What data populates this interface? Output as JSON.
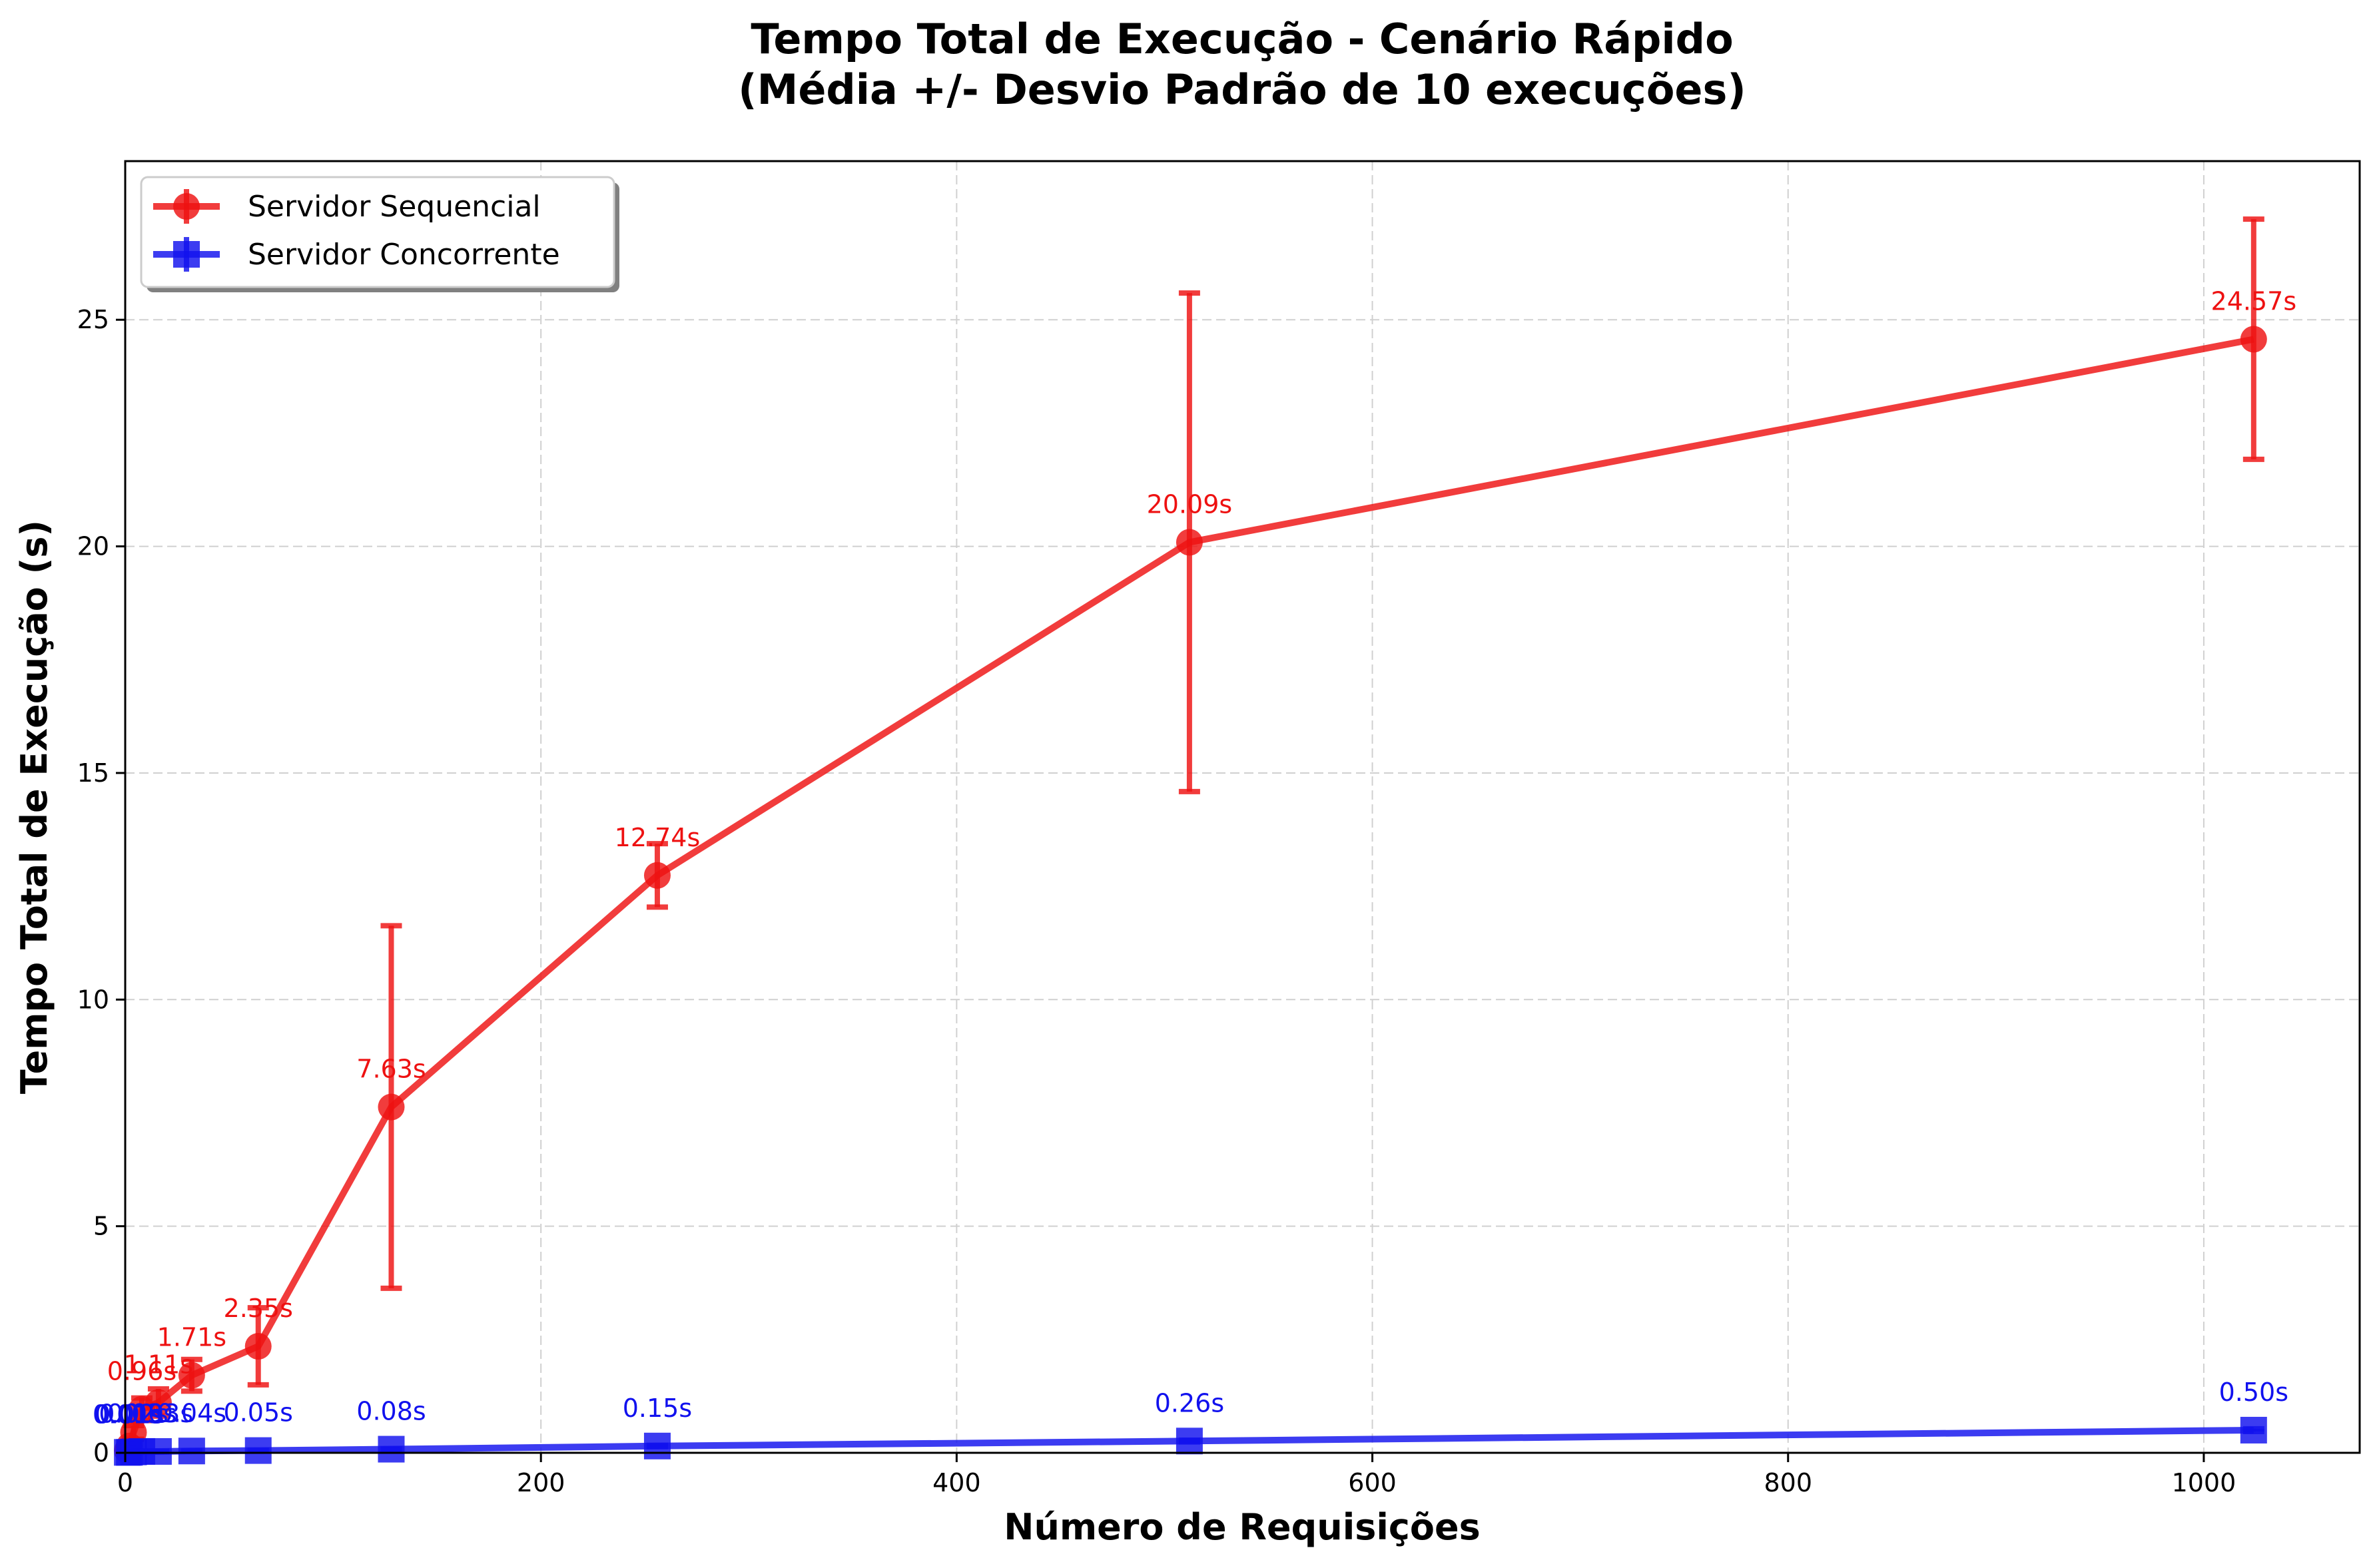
{
  "chart_data": {
    "type": "line",
    "title": "Tempo Total de Execução - Cenário Rápido",
    "subtitle": "(Média +/- Desvio Padrão de 10 execuções)",
    "xlabel": "Número de Requisições",
    "ylabel": "Tempo Total de Execução (s)",
    "xlim": [
      0,
      1075
    ],
    "ylim": [
      0,
      28.5
    ],
    "xticks": [
      0,
      200,
      400,
      600,
      800,
      1000
    ],
    "yticks": [
      0,
      5,
      10,
      15,
      20,
      25
    ],
    "grid": true,
    "legend_position": "top-left",
    "series": [
      {
        "name": "Servidor Sequencial",
        "color": "#ee1111",
        "marker": "circle",
        "x": [
          1,
          2,
          4,
          8,
          16,
          32,
          64,
          128,
          256,
          512,
          1024
        ],
        "y": [
          0.05,
          0.15,
          0.45,
          0.96,
          1.11,
          1.71,
          2.35,
          7.63,
          12.74,
          20.09,
          24.57
        ],
        "err": [
          0.02,
          0.05,
          0.15,
          0.25,
          0.3,
          0.35,
          0.85,
          4.0,
          0.7,
          5.5,
          2.65
        ],
        "labels": [
          "",
          "",
          "",
          "0.96s",
          "1.11s",
          "1.71s",
          "2.35s",
          "7.63s",
          "12.74s",
          "20.09s",
          "24.57s"
        ]
      },
      {
        "name": "Servidor Concorrente",
        "color": "#1111ee",
        "marker": "square",
        "x": [
          1,
          2,
          4,
          8,
          16,
          32,
          64,
          128,
          256,
          512,
          1024
        ],
        "y": [
          0.01,
          0.01,
          0.02,
          0.03,
          0.03,
          0.04,
          0.05,
          0.08,
          0.15,
          0.26,
          0.5
        ],
        "err": [
          0.002,
          0.002,
          0.003,
          0.004,
          0.005,
          0.005,
          0.006,
          0.01,
          0.015,
          0.02,
          0.03
        ],
        "labels": [
          "0.01s",
          "0.01s",
          "0.02s",
          "0.03s",
          "0.03s",
          "0.04s",
          "0.05s",
          "0.08s",
          "0.15s",
          "0.26s",
          "0.50s"
        ]
      }
    ]
  }
}
